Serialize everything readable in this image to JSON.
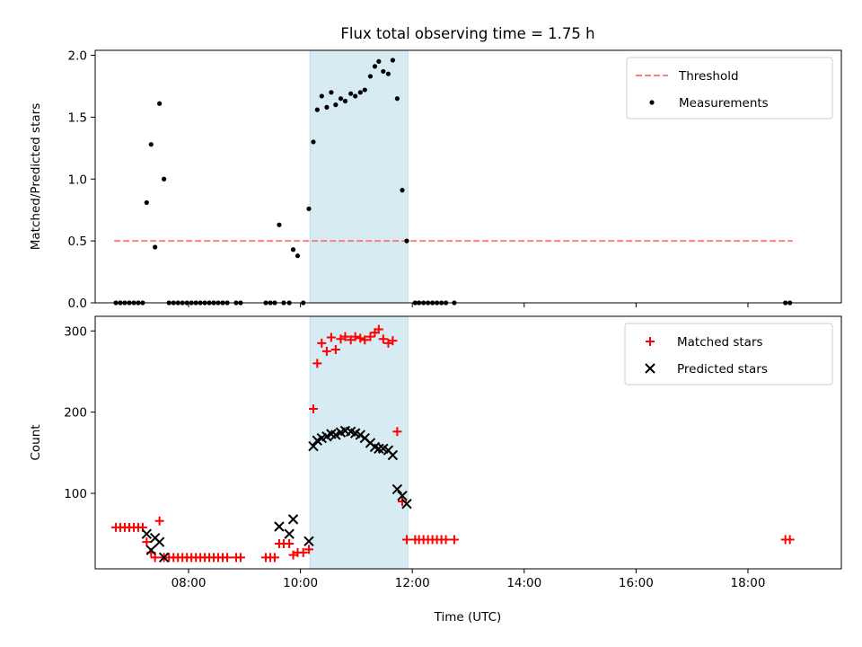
{
  "chart_data": {
    "title": "Flux total observing time = 1.75 h",
    "xlabel": "Time (UTC)",
    "x_unit": "hours (UTC)",
    "xlim": [
      6.33,
      19.67
    ],
    "xticks": [
      {
        "value": 8,
        "label": "08:00"
      },
      {
        "value": 10,
        "label": "10:00"
      },
      {
        "value": 12,
        "label": "12:00"
      },
      {
        "value": 14,
        "label": "14:00"
      },
      {
        "value": 16,
        "label": "16:00"
      },
      {
        "value": 18,
        "label": "18:00"
      }
    ],
    "highlight_span": {
      "start": 10.17,
      "end": 11.92,
      "color": "#add8e6"
    },
    "panels": [
      {
        "id": "ratio",
        "type": "scatter",
        "ylabel": "Matched/Predicted stars",
        "ylim": [
          0,
          2.04
        ],
        "yticks": [
          {
            "value": 0,
            "label": "0.0"
          },
          {
            "value": 0.5,
            "label": "0.5"
          },
          {
            "value": 1.0,
            "label": "1.0"
          },
          {
            "value": 1.5,
            "label": "1.5"
          },
          {
            "value": 2.0,
            "label": "2.0"
          }
        ],
        "legend": {
          "position": "upper right",
          "entries": [
            {
              "label": "Threshold",
              "marker": "dashed-line",
              "color": "#ff7f7f"
            },
            {
              "label": "Measurements",
              "marker": "dot",
              "color": "#000000"
            }
          ]
        },
        "threshold": {
          "value": 0.5,
          "x": [
            6.67,
            18.8
          ],
          "color": "#ff7f7f"
        },
        "series": [
          {
            "name": "Measurements",
            "marker": "dot",
            "color": "#000000",
            "points": [
              [
                6.7,
                0
              ],
              [
                6.78,
                0
              ],
              [
                6.86,
                0
              ],
              [
                6.94,
                0
              ],
              [
                7.02,
                0
              ],
              [
                7.1,
                0
              ],
              [
                7.18,
                0
              ],
              [
                7.25,
                0.81
              ],
              [
                7.33,
                1.28
              ],
              [
                7.4,
                0.45
              ],
              [
                7.48,
                1.61
              ],
              [
                7.56,
                1.0
              ],
              [
                7.65,
                0
              ],
              [
                7.73,
                0
              ],
              [
                7.81,
                0
              ],
              [
                7.89,
                0
              ],
              [
                7.97,
                0
              ],
              [
                8.05,
                0
              ],
              [
                8.13,
                0
              ],
              [
                8.21,
                0
              ],
              [
                8.29,
                0
              ],
              [
                8.37,
                0
              ],
              [
                8.45,
                0
              ],
              [
                8.53,
                0
              ],
              [
                8.61,
                0
              ],
              [
                8.69,
                0
              ],
              [
                8.85,
                0
              ],
              [
                8.93,
                0
              ],
              [
                9.38,
                0
              ],
              [
                9.46,
                0
              ],
              [
                9.54,
                0
              ],
              [
                9.62,
                0.63
              ],
              [
                9.7,
                0
              ],
              [
                9.8,
                0
              ],
              [
                9.87,
                0.43
              ],
              [
                9.95,
                0.38
              ],
              [
                10.05,
                0
              ],
              [
                10.15,
                0.76
              ],
              [
                10.23,
                1.3
              ],
              [
                10.3,
                1.56
              ],
              [
                10.38,
                1.67
              ],
              [
                10.47,
                1.58
              ],
              [
                10.55,
                1.7
              ],
              [
                10.63,
                1.6
              ],
              [
                10.72,
                1.65
              ],
              [
                10.8,
                1.63
              ],
              [
                10.9,
                1.69
              ],
              [
                10.98,
                1.67
              ],
              [
                11.07,
                1.7
              ],
              [
                11.15,
                1.72
              ],
              [
                11.25,
                1.83
              ],
              [
                11.33,
                1.91
              ],
              [
                11.4,
                1.95
              ],
              [
                11.48,
                1.87
              ],
              [
                11.57,
                1.85
              ],
              [
                11.65,
                1.96
              ],
              [
                11.73,
                1.65
              ],
              [
                11.82,
                0.91
              ],
              [
                11.9,
                0.5
              ],
              [
                12.05,
                0
              ],
              [
                12.12,
                0
              ],
              [
                12.2,
                0
              ],
              [
                12.28,
                0
              ],
              [
                12.36,
                0
              ],
              [
                12.44,
                0
              ],
              [
                12.52,
                0
              ],
              [
                12.6,
                0
              ],
              [
                12.75,
                0
              ],
              [
                18.67,
                0
              ],
              [
                18.75,
                0
              ]
            ]
          }
        ]
      },
      {
        "id": "counts",
        "type": "scatter",
        "ylabel": "Count",
        "ylim": [
          7,
          318
        ],
        "yticks": [
          {
            "value": 100,
            "label": "100"
          },
          {
            "value": 200,
            "label": "200"
          },
          {
            "value": 300,
            "label": "300"
          }
        ],
        "legend": {
          "position": "upper right",
          "entries": [
            {
              "label": "Matched stars",
              "marker": "plus",
              "color": "#ff0000"
            },
            {
              "label": "Predicted stars",
              "marker": "x",
              "color": "#000000"
            }
          ]
        },
        "series": [
          {
            "name": "Matched stars",
            "marker": "plus",
            "color": "#ff0000",
            "points": [
              [
                6.7,
                58
              ],
              [
                6.78,
                58
              ],
              [
                6.86,
                58
              ],
              [
                6.94,
                58
              ],
              [
                7.02,
                58
              ],
              [
                7.1,
                58
              ],
              [
                7.18,
                58
              ],
              [
                7.25,
                40
              ],
              [
                7.33,
                27
              ],
              [
                7.4,
                21
              ],
              [
                7.48,
                66
              ],
              [
                7.56,
                21
              ],
              [
                7.65,
                21
              ],
              [
                7.73,
                21
              ],
              [
                7.81,
                21
              ],
              [
                7.89,
                21
              ],
              [
                7.97,
                21
              ],
              [
                8.05,
                21
              ],
              [
                8.13,
                21
              ],
              [
                8.21,
                21
              ],
              [
                8.29,
                21
              ],
              [
                8.37,
                21
              ],
              [
                8.45,
                21
              ],
              [
                8.53,
                21
              ],
              [
                8.61,
                21
              ],
              [
                8.69,
                21
              ],
              [
                8.85,
                21
              ],
              [
                8.93,
                21
              ],
              [
                9.38,
                21
              ],
              [
                9.46,
                21
              ],
              [
                9.54,
                21
              ],
              [
                9.62,
                38
              ],
              [
                9.7,
                38
              ],
              [
                9.8,
                38
              ],
              [
                9.87,
                24
              ],
              [
                9.95,
                27
              ],
              [
                10.05,
                27
              ],
              [
                10.15,
                31
              ],
              [
                10.23,
                204
              ],
              [
                10.3,
                260
              ],
              [
                10.38,
                285
              ],
              [
                10.47,
                275
              ],
              [
                10.55,
                292
              ],
              [
                10.63,
                277
              ],
              [
                10.72,
                290
              ],
              [
                10.8,
                293
              ],
              [
                10.9,
                289
              ],
              [
                10.98,
                293
              ],
              [
                11.07,
                291
              ],
              [
                11.15,
                289
              ],
              [
                11.25,
                293
              ],
              [
                11.33,
                298
              ],
              [
                11.4,
                302
              ],
              [
                11.48,
                290
              ],
              [
                11.57,
                285
              ],
              [
                11.65,
                288
              ],
              [
                11.73,
                176
              ],
              [
                11.82,
                90
              ],
              [
                11.9,
                43
              ],
              [
                12.05,
                43
              ],
              [
                12.12,
                43
              ],
              [
                12.2,
                43
              ],
              [
                12.28,
                43
              ],
              [
                12.36,
                43
              ],
              [
                12.44,
                43
              ],
              [
                12.52,
                43
              ],
              [
                12.6,
                43
              ],
              [
                12.75,
                43
              ],
              [
                18.67,
                43
              ],
              [
                18.75,
                43
              ]
            ]
          },
          {
            "name": "Predicted stars",
            "marker": "x",
            "color": "#000000",
            "points": [
              [
                7.25,
                50
              ],
              [
                7.33,
                30
              ],
              [
                7.4,
                45
              ],
              [
                7.48,
                40
              ],
              [
                7.56,
                21
              ],
              [
                9.62,
                59
              ],
              [
                9.8,
                50
              ],
              [
                9.87,
                68
              ],
              [
                10.15,
                41
              ],
              [
                10.23,
                158
              ],
              [
                10.3,
                165
              ],
              [
                10.38,
                168
              ],
              [
                10.47,
                170
              ],
              [
                10.55,
                173
              ],
              [
                10.63,
                172
              ],
              [
                10.72,
                175
              ],
              [
                10.8,
                177
              ],
              [
                10.9,
                176
              ],
              [
                10.98,
                174
              ],
              [
                11.07,
                172
              ],
              [
                11.15,
                168
              ],
              [
                11.25,
                162
              ],
              [
                11.33,
                157
              ],
              [
                11.4,
                155
              ],
              [
                11.48,
                155
              ],
              [
                11.57,
                153
              ],
              [
                11.65,
                147
              ],
              [
                11.73,
                105
              ],
              [
                11.82,
                97
              ],
              [
                11.9,
                87
              ]
            ]
          }
        ]
      }
    ]
  }
}
